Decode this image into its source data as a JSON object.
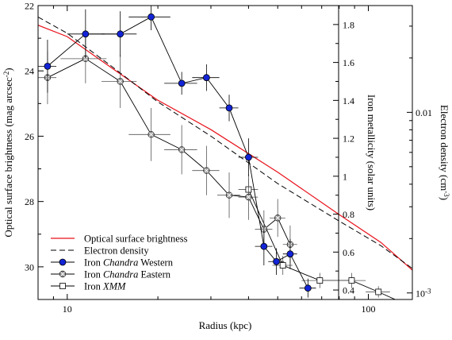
{
  "chart_data": {
    "type": "scatter",
    "xlabel": "Radius (kpc)",
    "ylabel_left": "Optical surface brightness (mag arcsec",
    "ylabel_left_sup": "-2",
    "ylabel_left_end": ")",
    "ylabel_mid": "Iron metallicity (solar units)",
    "ylabel_right": "Electron density (cm",
    "ylabel_right_sup": "-3",
    "ylabel_right_end": ")",
    "x_scale": "log",
    "xlim": [
      8,
      140
    ],
    "x_ticks": [
      {
        "value": 10,
        "label": "10"
      },
      {
        "value": 100,
        "label": "100"
      }
    ],
    "y_left_lim": [
      31,
      22
    ],
    "y_left_ticks": [
      22,
      24,
      26,
      28,
      30
    ],
    "y_mid_lim": [
      0.35,
      1.9
    ],
    "y_mid_ticks": [
      0.4,
      0.6,
      0.8,
      1,
      1.2,
      1.4,
      1.6,
      1.8
    ],
    "y_right_scale": "log",
    "y_right_lim": [
      0.00092,
      0.039
    ],
    "y_right_ticks": [
      {
        "value": 0.01,
        "label": "0.01"
      },
      {
        "value": 0.001,
        "label": "10",
        "sup": "-3"
      }
    ],
    "grid": false,
    "legend_position": "bottom-left",
    "legend": [
      {
        "label": "Optical surface brightness",
        "italic": "",
        "suffix": "",
        "style": "red-line"
      },
      {
        "label": "Electron density",
        "italic": "",
        "suffix": "",
        "style": "dashed-line"
      },
      {
        "label": "Iron ",
        "italic": "Chandra",
        "suffix": " Western",
        "style": "blue-circle"
      },
      {
        "label": "Iron ",
        "italic": "Chandra",
        "suffix": " Eastern",
        "style": "gray-crossed-circle"
      },
      {
        "label": "Iron ",
        "italic": "XMM",
        "suffix": "",
        "style": "open-square"
      }
    ],
    "colors": {
      "optical": "#e8111a",
      "density": "#000000",
      "western": "#1224d6",
      "eastern": "#9a9a9a",
      "xmm": "#ffffff"
    },
    "series": [
      {
        "id": "optical",
        "axis": "left",
        "style": "line",
        "points": [
          [
            8,
            22.6
          ],
          [
            10,
            22.95
          ],
          [
            14,
            23.9
          ],
          [
            20,
            24.9
          ],
          [
            30,
            25.8
          ],
          [
            50,
            27.1
          ],
          [
            80,
            28.4
          ],
          [
            110,
            29.25
          ],
          [
            140,
            30.1
          ]
        ]
      },
      {
        "id": "density",
        "axis": "left",
        "style": "dashed",
        "points": [
          [
            8,
            22.35
          ],
          [
            10,
            22.85
          ],
          [
            14,
            23.85
          ],
          [
            20,
            24.95
          ],
          [
            30,
            26.0
          ],
          [
            50,
            27.45
          ],
          [
            80,
            28.6
          ],
          [
            110,
            29.35
          ],
          [
            140,
            30.05
          ]
        ]
      },
      {
        "id": "western",
        "axis": "mid",
        "style": "blue-circle",
        "points": [
          {
            "x": 8.6,
            "y": 1.58,
            "xerr": [
              0.6,
              0.6
            ],
            "yerr": 0.14
          },
          {
            "x": 11.5,
            "y": 1.75,
            "xerr": [
              1.5,
              1.8
            ],
            "yerr": 0.13
          },
          {
            "x": 15.0,
            "y": 1.75,
            "xerr": [
              2.0,
              2.0
            ],
            "yerr": 0.12
          },
          {
            "x": 19.0,
            "y": 1.84,
            "xerr": [
              3.0,
              3.0
            ],
            "yerr": 0.07
          },
          {
            "x": 24.0,
            "y": 1.49,
            "xerr": [
              3.0,
              3.0
            ],
            "yerr": 0.06
          },
          {
            "x": 29.0,
            "y": 1.52,
            "xerr": [
              3.0,
              3.0
            ],
            "yerr": 0.07
          },
          {
            "x": 34.5,
            "y": 1.36,
            "xerr": [
              2.5,
              2.5
            ],
            "yerr": 0.07
          },
          {
            "x": 40.0,
            "y": 1.1,
            "xerr": [
              3.0,
              3.0
            ],
            "yerr": 0.1
          },
          {
            "x": 45.0,
            "y": 0.63,
            "xerr": [
              3.0,
              3.0
            ],
            "yerr": 0.1
          },
          {
            "x": 49.5,
            "y": 0.55,
            "xerr": [
              3.0,
              3.0
            ],
            "yerr": 0.07
          },
          {
            "x": 55.0,
            "y": 0.59,
            "xerr": [
              3.0,
              3.0
            ],
            "yerr": 0.08
          },
          {
            "x": 63.0,
            "y": 0.41,
            "xerr": [
              4.0,
              4.0
            ],
            "yerr": 0.05
          }
        ]
      },
      {
        "id": "eastern",
        "axis": "mid",
        "style": "gray-crossed-circle",
        "points": [
          {
            "x": 8.6,
            "y": 1.52,
            "xerr": [
              0.6,
              0.6
            ],
            "yerr": 0.14
          },
          {
            "x": 11.5,
            "y": 1.62,
            "xerr": [
              2.0,
              2.0
            ],
            "yerr": 0.13
          },
          {
            "x": 15.0,
            "y": 1.5,
            "xerr": [
              2.0,
              2.0
            ],
            "yerr": 0.14
          },
          {
            "x": 19.0,
            "y": 1.22,
            "xerr": [
              3.0,
              3.0
            ],
            "yerr": 0.14
          },
          {
            "x": 24.0,
            "y": 1.14,
            "xerr": [
              3.0,
              3.0
            ],
            "yerr": 0.13
          },
          {
            "x": 29.0,
            "y": 1.03,
            "xerr": [
              3.0,
              3.0
            ],
            "yerr": 0.13
          },
          {
            "x": 34.5,
            "y": 0.9,
            "xerr": [
              3.0,
              3.0
            ],
            "yerr": 0.12
          },
          {
            "x": 40.0,
            "y": 0.89,
            "xerr": [
              3.0,
              3.0
            ],
            "yerr": 0.12
          },
          {
            "x": 45.0,
            "y": 0.72,
            "xerr": [
              3.0,
              3.0
            ],
            "yerr": 0.1
          },
          {
            "x": 50.0,
            "y": 0.78,
            "xerr": [
              3.0,
              3.0
            ],
            "yerr": 0.1
          },
          {
            "x": 55.0,
            "y": 0.64,
            "xerr": [
              3.0,
              3.0
            ],
            "yerr": 0.1
          }
        ]
      },
      {
        "id": "xmm",
        "axis": "mid",
        "style": "open-square",
        "points": [
          {
            "x": 40.0,
            "y": 0.93,
            "xerr": [
              3.0,
              3.0
            ],
            "yerr": 0.06
          },
          {
            "x": 52.0,
            "y": 0.53,
            "xerr": [
              4.0,
              4.0
            ],
            "yerr": 0.05
          },
          {
            "x": 69.0,
            "y": 0.45,
            "xerr": [
              9.0,
              9.0
            ],
            "yerr": 0.04
          },
          {
            "x": 88.0,
            "y": 0.45,
            "xerr": [
              10.0,
              10.0
            ],
            "yerr": 0.04
          },
          {
            "x": 108.0,
            "y": 0.39,
            "xerr": [
              10.0,
              10.0
            ],
            "yerr": 0.03
          },
          {
            "x": 131.0,
            "y": 0.33,
            "xerr": [
              8.0,
              8.0
            ],
            "yerr": 0.02
          }
        ]
      }
    ]
  }
}
